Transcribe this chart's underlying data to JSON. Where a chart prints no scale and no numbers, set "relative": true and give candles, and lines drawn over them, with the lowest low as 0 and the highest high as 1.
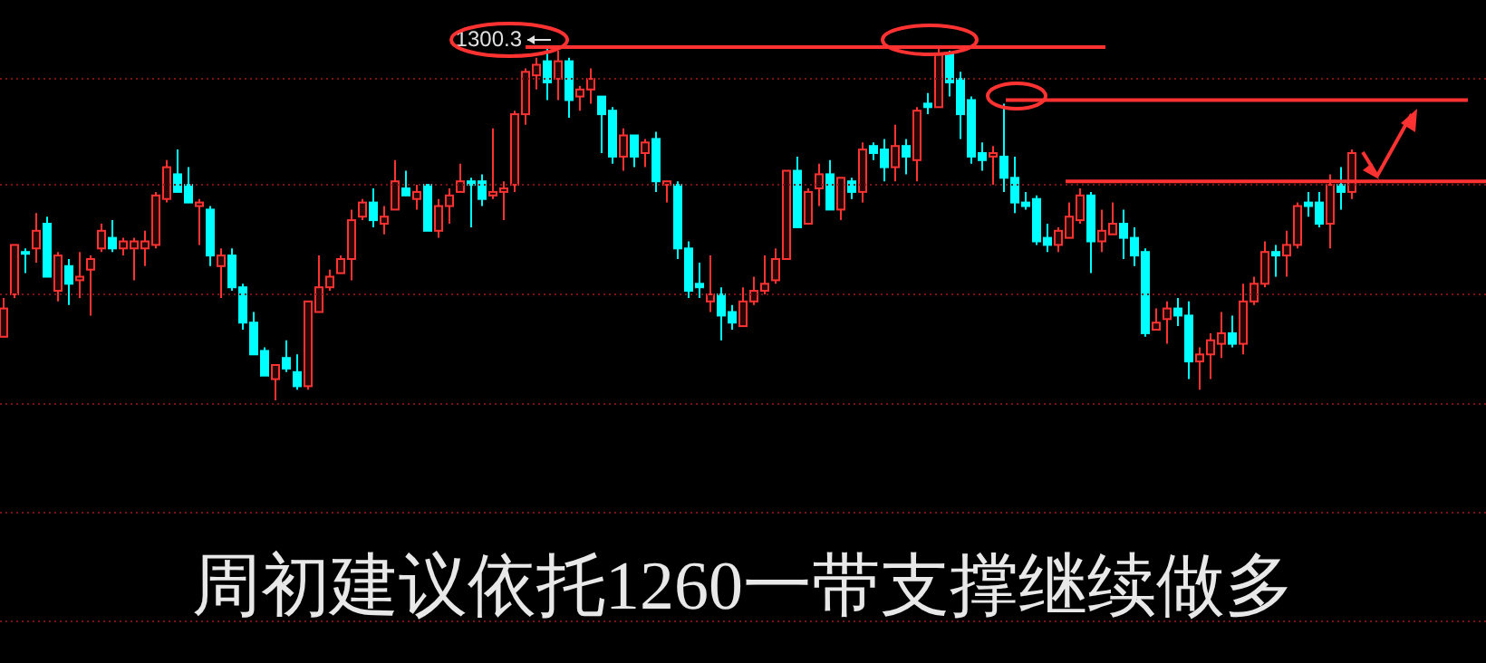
{
  "chart_data": {
    "type": "candlestick",
    "relative": true,
    "title": "周初建议依托1260一带支撑继续做多",
    "annotations": [
      "1300.3"
    ],
    "categories": [
      null,
      null,
      null,
      null,
      null,
      null,
      null,
      null,
      null,
      null,
      null,
      null,
      null,
      null,
      null,
      null,
      null,
      null,
      null,
      null,
      null,
      null,
      null,
      null,
      null,
      null,
      null,
      null,
      null,
      null,
      null,
      null,
      null,
      null,
      null,
      null,
      null,
      null,
      null,
      null,
      null,
      null,
      null,
      null,
      null,
      null,
      null,
      null,
      null,
      null,
      null,
      null,
      null,
      null,
      null,
      null,
      null,
      null,
      null,
      null,
      null,
      null,
      null,
      null,
      null,
      null,
      null,
      null,
      null,
      null,
      null,
      null,
      null,
      null,
      null,
      null,
      null,
      null,
      null,
      null,
      null,
      null,
      null,
      null,
      null,
      null,
      null,
      null,
      null,
      null,
      null,
      null,
      null,
      null,
      null,
      null,
      null,
      null,
      null,
      null,
      null,
      null,
      null,
      null,
      null,
      null,
      null,
      null,
      null,
      null,
      null,
      null,
      null,
      null,
      null,
      null,
      null,
      null,
      null,
      null,
      null,
      null,
      null,
      null,
      null
    ],
    "ohlc": [
      [
        0.18,
        0.29,
        0.18,
        0.26
      ],
      [
        0.3,
        0.44,
        0.29,
        0.44
      ],
      [
        0.42,
        0.43,
        0.36,
        0.42
      ],
      [
        0.43,
        0.53,
        0.39,
        0.48
      ],
      [
        0.5,
        0.52,
        0.35,
        0.35
      ],
      [
        0.31,
        0.42,
        0.28,
        0.41
      ],
      [
        0.38,
        0.4,
        0.27,
        0.33
      ],
      [
        0.34,
        0.42,
        0.29,
        0.35
      ],
      [
        0.37,
        0.41,
        0.24,
        0.4
      ],
      [
        0.43,
        0.5,
        0.42,
        0.48
      ],
      [
        0.46,
        0.51,
        0.42,
        0.43
      ],
      [
        0.43,
        0.46,
        0.41,
        0.45
      ],
      [
        0.43,
        0.46,
        0.34,
        0.45
      ],
      [
        0.43,
        0.48,
        0.38,
        0.45
      ],
      [
        0.44,
        0.59,
        0.43,
        0.58
      ],
      [
        0.57,
        0.68,
        0.56,
        0.66
      ],
      [
        0.64,
        0.71,
        0.59,
        0.59
      ],
      [
        0.61,
        0.66,
        0.56,
        0.56
      ],
      [
        0.55,
        0.57,
        0.44,
        0.56
      ],
      [
        0.54,
        0.55,
        0.38,
        0.41
      ],
      [
        0.38,
        0.43,
        0.29,
        0.41
      ],
      [
        0.41,
        0.43,
        0.31,
        0.32
      ],
      [
        0.32,
        0.33,
        0.2,
        0.22
      ],
      [
        0.22,
        0.25,
        0.13,
        0.13
      ],
      [
        0.14,
        0.15,
        0.07,
        0.07
      ],
      [
        0.06,
        0.1,
        0.0,
        0.1
      ],
      [
        0.12,
        0.17,
        0.08,
        0.09
      ],
      [
        0.08,
        0.13,
        0.03,
        0.04
      ],
      [
        0.04,
        0.28,
        0.03,
        0.28
      ],
      [
        0.25,
        0.41,
        0.25,
        0.32
      ],
      [
        0.32,
        0.37,
        0.31,
        0.35
      ],
      [
        0.36,
        0.41,
        0.36,
        0.4
      ],
      [
        0.4,
        0.54,
        0.34,
        0.51
      ],
      [
        0.52,
        0.57,
        0.51,
        0.56
      ],
      [
        0.56,
        0.6,
        0.49,
        0.51
      ],
      [
        0.5,
        0.55,
        0.47,
        0.52
      ],
      [
        0.54,
        0.68,
        0.54,
        0.62
      ],
      [
        0.6,
        0.65,
        0.58,
        0.58
      ],
      [
        0.57,
        0.61,
        0.54,
        0.59
      ],
      [
        0.61,
        0.61,
        0.48,
        0.48
      ],
      [
        0.48,
        0.57,
        0.46,
        0.55
      ],
      [
        0.55,
        0.6,
        0.5,
        0.58
      ],
      [
        0.59,
        0.67,
        0.59,
        0.62
      ],
      [
        0.62,
        0.63,
        0.49,
        0.61
      ],
      [
        0.62,
        0.64,
        0.55,
        0.57
      ],
      [
        0.58,
        0.77,
        0.57,
        0.59
      ],
      [
        0.59,
        0.62,
        0.51,
        0.6
      ],
      [
        0.61,
        0.82,
        0.59,
        0.81
      ],
      [
        0.81,
        0.94,
        0.78,
        0.93
      ],
      [
        0.92,
        0.97,
        0.88,
        0.95
      ],
      [
        0.96,
        1.0,
        0.85,
        0.9
      ],
      [
        0.91,
        0.99,
        0.85,
        0.96
      ],
      [
        0.96,
        0.97,
        0.8,
        0.85
      ],
      [
        0.86,
        0.89,
        0.82,
        0.88
      ],
      [
        0.88,
        0.94,
        0.84,
        0.91
      ],
      [
        0.86,
        0.86,
        0.7,
        0.81
      ],
      [
        0.82,
        0.83,
        0.67,
        0.69
      ],
      [
        0.69,
        0.77,
        0.65,
        0.75
      ],
      [
        0.75,
        0.75,
        0.66,
        0.69
      ],
      [
        0.7,
        0.74,
        0.66,
        0.73
      ],
      [
        0.74,
        0.76,
        0.59,
        0.62
      ],
      [
        0.61,
        0.62,
        0.56,
        0.62
      ],
      [
        0.61,
        0.62,
        0.4,
        0.43
      ],
      [
        0.43,
        0.45,
        0.29,
        0.31
      ],
      [
        0.33,
        0.39,
        0.29,
        0.32
      ],
      [
        0.28,
        0.41,
        0.25,
        0.3
      ],
      [
        0.3,
        0.32,
        0.17,
        0.24
      ],
      [
        0.25,
        0.27,
        0.2,
        0.22
      ],
      [
        0.21,
        0.32,
        0.21,
        0.28
      ],
      [
        0.28,
        0.35,
        0.27,
        0.31
      ],
      [
        0.31,
        0.41,
        0.3,
        0.33
      ],
      [
        0.34,
        0.43,
        0.33,
        0.4
      ],
      [
        0.4,
        0.65,
        0.4,
        0.65
      ],
      [
        0.65,
        0.69,
        0.49,
        0.49
      ],
      [
        0.5,
        0.6,
        0.5,
        0.59
      ],
      [
        0.6,
        0.67,
        0.55,
        0.64
      ],
      [
        0.64,
        0.68,
        0.54,
        0.54
      ],
      [
        0.54,
        0.63,
        0.51,
        0.63
      ],
      [
        0.62,
        0.63,
        0.57,
        0.59
      ],
      [
        0.59,
        0.73,
        0.56,
        0.71
      ],
      [
        0.72,
        0.73,
        0.68,
        0.7
      ],
      [
        0.71,
        0.74,
        0.62,
        0.66
      ],
      [
        0.66,
        0.78,
        0.62,
        0.72
      ],
      [
        0.72,
        0.74,
        0.64,
        0.69
      ],
      [
        0.68,
        0.83,
        0.62,
        0.82
      ],
      [
        0.84,
        0.87,
        0.81,
        0.83
      ],
      [
        0.83,
        1.0,
        0.83,
        0.98
      ],
      [
        0.98,
        0.99,
        0.86,
        0.9
      ],
      [
        0.91,
        0.93,
        0.74,
        0.81
      ],
      [
        0.85,
        0.86,
        0.67,
        0.69
      ],
      [
        0.7,
        0.73,
        0.65,
        0.68
      ],
      [
        0.69,
        0.72,
        0.61,
        0.7
      ],
      [
        0.69,
        0.84,
        0.59,
        0.63
      ],
      [
        0.63,
        0.69,
        0.53,
        0.56
      ],
      [
        0.56,
        0.59,
        0.54,
        0.55
      ],
      [
        0.57,
        0.58,
        0.44,
        0.45
      ],
      [
        0.46,
        0.5,
        0.42,
        0.44
      ],
      [
        0.44,
        0.49,
        0.42,
        0.48
      ],
      [
        0.46,
        0.56,
        0.46,
        0.52
      ],
      [
        0.51,
        0.6,
        0.5,
        0.58
      ],
      [
        0.58,
        0.59,
        0.36,
        0.45
      ],
      [
        0.45,
        0.54,
        0.42,
        0.48
      ],
      [
        0.47,
        0.56,
        0.47,
        0.5
      ],
      [
        0.5,
        0.54,
        0.4,
        0.46
      ],
      [
        0.46,
        0.49,
        0.38,
        0.41
      ],
      [
        0.42,
        0.43,
        0.18,
        0.19
      ],
      [
        0.2,
        0.26,
        0.2,
        0.22
      ],
      [
        0.23,
        0.28,
        0.16,
        0.26
      ],
      [
        0.26,
        0.29,
        0.21,
        0.24
      ],
      [
        0.24,
        0.28,
        0.06,
        0.11
      ],
      [
        0.11,
        0.15,
        0.03,
        0.13
      ],
      [
        0.13,
        0.19,
        0.06,
        0.17
      ],
      [
        0.16,
        0.25,
        0.12,
        0.19
      ],
      [
        0.19,
        0.24,
        0.15,
        0.16
      ],
      [
        0.16,
        0.33,
        0.13,
        0.28
      ],
      [
        0.28,
        0.35,
        0.27,
        0.33
      ],
      [
        0.33,
        0.45,
        0.32,
        0.42
      ],
      [
        0.42,
        0.44,
        0.35,
        0.41
      ],
      [
        0.41,
        0.48,
        0.35,
        0.44
      ],
      [
        0.44,
        0.56,
        0.43,
        0.55
      ],
      [
        0.56,
        0.59,
        0.52,
        0.55
      ],
      [
        0.56,
        0.59,
        0.49,
        0.5
      ],
      [
        0.5,
        0.64,
        0.43,
        0.61
      ],
      [
        0.61,
        0.66,
        0.54,
        0.59
      ],
      [
        0.59,
        0.71,
        0.57,
        0.7
      ]
    ],
    "colors": [
      "#ff3232",
      "#ff3232",
      "#00ffff",
      "#ff3232",
      "#00ffff",
      "#ff3232",
      "#00ffff",
      "#ff3232",
      "#ff3232",
      "#ff3232",
      "#00ffff",
      "#ff3232",
      "#ff3232",
      "#ff3232",
      "#ff3232",
      "#ff3232",
      "#00ffff",
      "#00ffff",
      "#ff3232",
      "#00ffff",
      "#ff3232",
      "#00ffff",
      "#00ffff",
      "#00ffff",
      "#00ffff",
      "#ff3232",
      "#00ffff",
      "#00ffff",
      "#ff3232",
      "#ff3232",
      "#ff3232",
      "#ff3232",
      "#ff3232",
      "#ff3232",
      "#00ffff",
      "#ff3232",
      "#ff3232",
      "#00ffff",
      "#ff3232",
      "#00ffff",
      "#ff3232",
      "#ff3232",
      "#ff3232",
      "#00ffff",
      "#00ffff",
      "#ff3232",
      "#ff3232",
      "#ff3232",
      "#ff3232",
      "#ff3232",
      "#00ffff",
      "#ff3232",
      "#00ffff",
      "#ff3232",
      "#ff3232",
      "#00ffff",
      "#00ffff",
      "#ff3232",
      "#00ffff",
      "#ff3232",
      "#00ffff",
      "#ff3232",
      "#00ffff",
      "#00ffff",
      "#00ffff",
      "#ff3232",
      "#00ffff",
      "#00ffff",
      "#ff3232",
      "#ff3232",
      "#ff3232",
      "#ff3232",
      "#ff3232",
      "#00ffff",
      "#ff3232",
      "#ff3232",
      "#00ffff",
      "#ff3232",
      "#00ffff",
      "#ff3232",
      "#00ffff",
      "#00ffff",
      "#ff3232",
      "#00ffff",
      "#ff3232",
      "#00ffff",
      "#ff3232",
      "#00ffff",
      "#00ffff",
      "#00ffff",
      "#00ffff",
      "#ff3232",
      "#00ffff",
      "#00ffff",
      "#00ffff",
      "#00ffff",
      "#00ffff",
      "#ff3232",
      "#ff3232",
      "#ff3232",
      "#00ffff",
      "#ff3232",
      "#ff3232",
      "#00ffff",
      "#00ffff",
      "#00ffff",
      "#ff3232",
      "#ff3232",
      "#00ffff",
      "#00ffff",
      "#ff3232",
      "#ff3232",
      "#ff3232",
      "#00ffff",
      "#ff3232",
      "#ff3232",
      "#ff3232",
      "#00ffff",
      "#ff3232",
      "#ff3232",
      "#00ffff",
      "#00ffff",
      "#ff3232",
      "#00ffff",
      "#ff3232"
    ],
    "ref_lines": [
      {
        "axis": "y",
        "value": 1.0,
        "color": "#ff3232"
      },
      {
        "axis": "y",
        "value": 0.85,
        "color": "#ff3232"
      },
      {
        "axis": "y",
        "value": 0.62,
        "color": "#ff3232"
      },
      {
        "axis": "y",
        "value": 0.91,
        "color": "#7a1414",
        "line_style": "dotted"
      },
      {
        "axis": "y",
        "value": 0.61,
        "color": "#7a1414",
        "line_style": "dotted"
      },
      {
        "axis": "y",
        "value": 0.3,
        "color": "#7a1414",
        "line_style": "dotted"
      }
    ]
  }
}
